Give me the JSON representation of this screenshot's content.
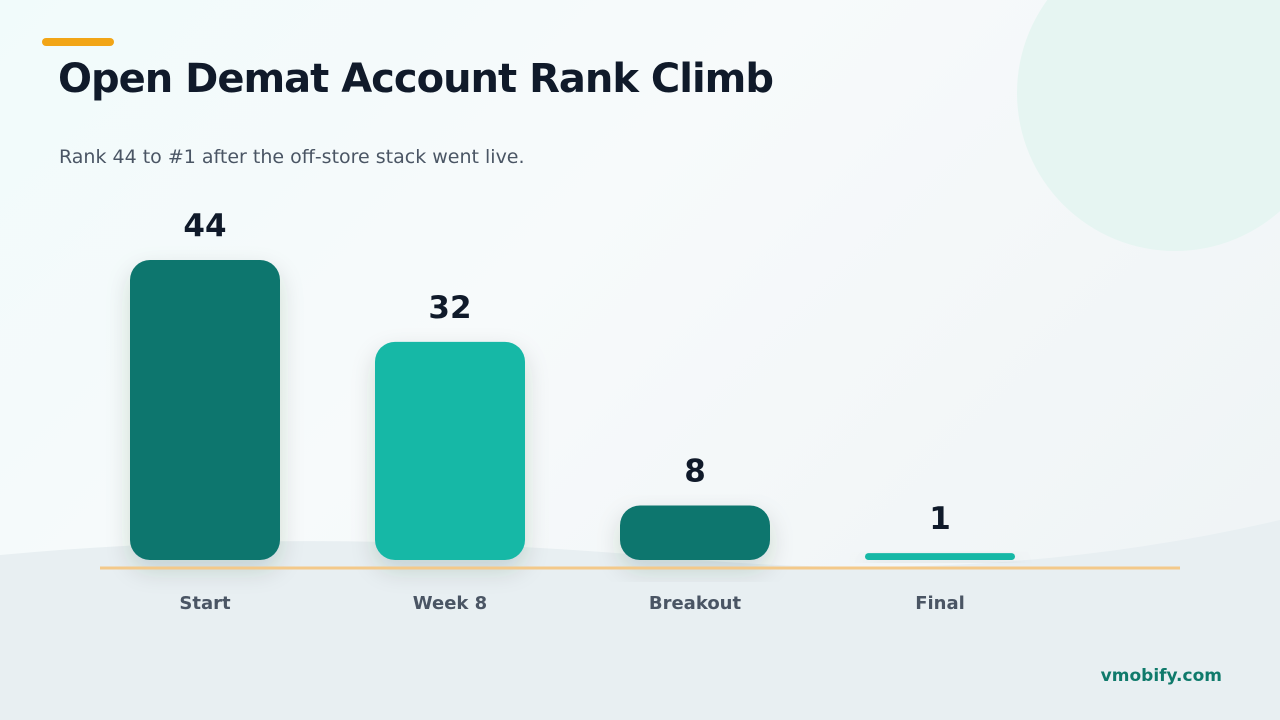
{
  "header": {
    "title": "Open Demat Account Rank Climb",
    "subtitle": "Rank 44 to #1 after the off-store stack went live."
  },
  "footer": {
    "brand": "vmobify.com"
  },
  "colors": {
    "accent": "#f2a516",
    "bar_dark": "#0f766e",
    "bar_light": "#17b8a6",
    "baseline": "#f3c98a",
    "text_dark": "#101a2a",
    "text_muted": "#4a5564",
    "brand": "#0f7a6b"
  },
  "chart_data": {
    "type": "bar",
    "categories": [
      "Start",
      "Week 8",
      "Breakout",
      "Final"
    ],
    "values": [
      44,
      32,
      8,
      1
    ],
    "title": "Open Demat Account Rank Climb",
    "xlabel": "",
    "ylabel": "",
    "ylim": [
      0,
      44
    ],
    "grid": false,
    "legend": "none"
  }
}
